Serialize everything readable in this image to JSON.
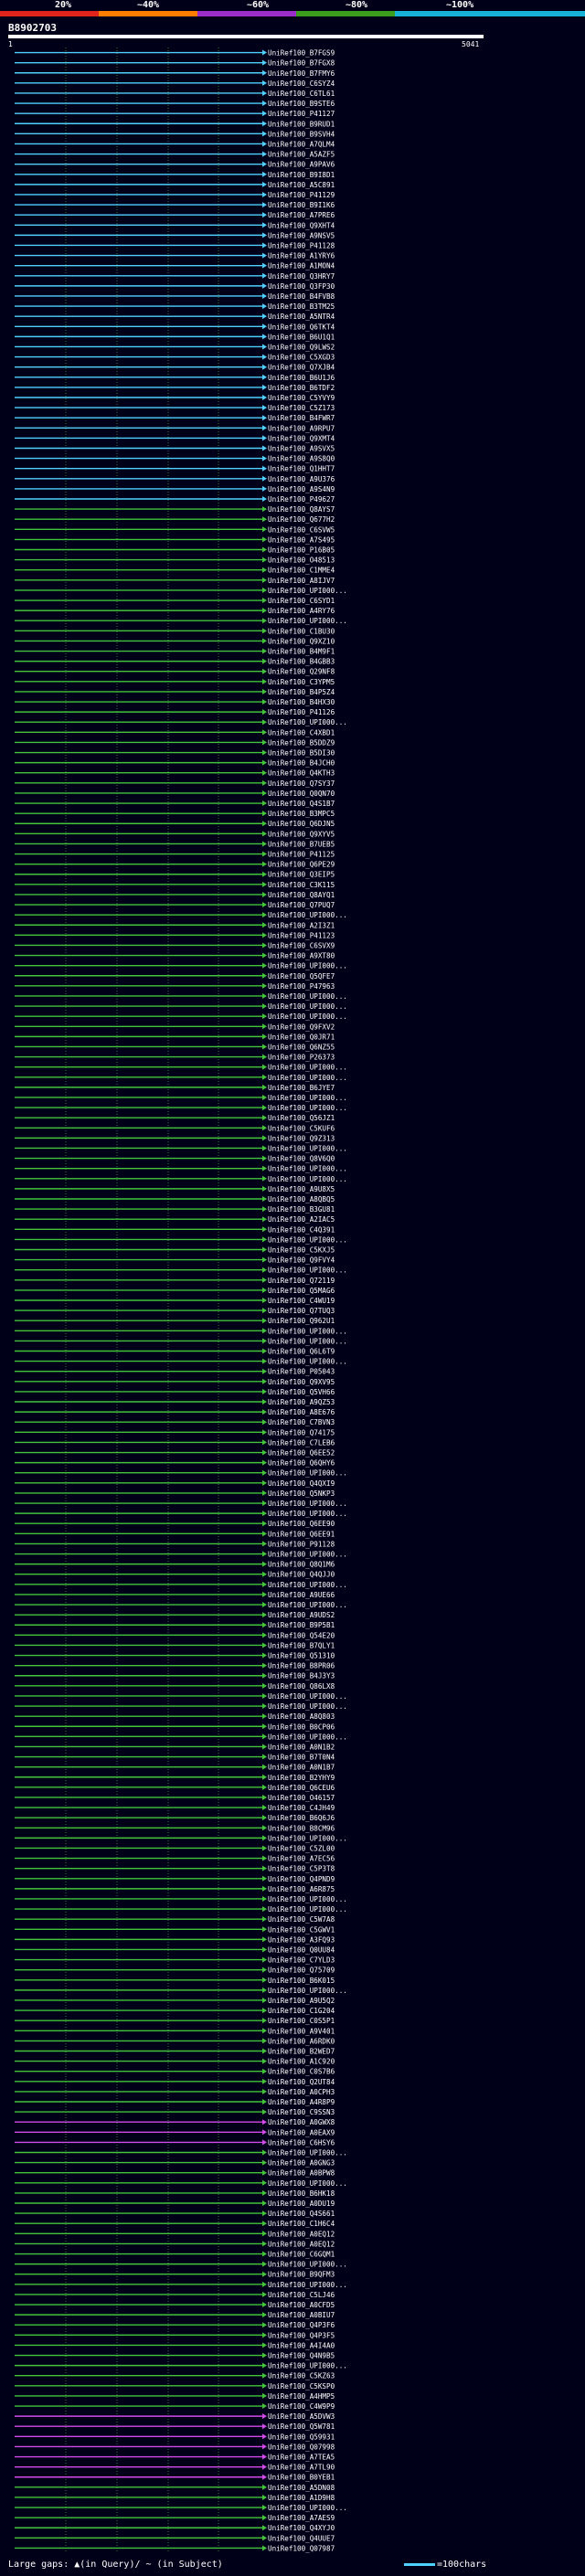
{
  "scale": {
    "labels": [
      "20%",
      "~40%",
      "~60%",
      "~80%",
      "~100%"
    ],
    "colors": [
      "#e0241b",
      "#ff7d00",
      "#9b2dc9",
      "#3c9c1c",
      "#17b2d6"
    ]
  },
  "query": {
    "id": "B8902703",
    "start": "1",
    "end": "5041"
  },
  "legend": {
    "text": "Large gaps: ▲(in Query)/ ~ (in Subject)",
    "scale_text": "=100chars"
  },
  "colors": {
    "cyan": "#4fd0ff",
    "green": "#43c43a",
    "magenta": "#d24ae8",
    "grid": "#3a7d3a"
  },
  "hits": [
    {
      "label": "UniRef100_B7FGS9",
      "color": "cyan"
    },
    {
      "label": "UniRef100_B7FGX8",
      "color": "cyan"
    },
    {
      "label": "UniRef100_B7FMY6",
      "color": "cyan"
    },
    {
      "label": "UniRef100_C6SYZ4",
      "color": "cyan"
    },
    {
      "label": "UniRef100_C6TL61",
      "color": "cyan"
    },
    {
      "label": "UniRef100_B9STE6",
      "color": "cyan"
    },
    {
      "label": "UniRef100_P41127",
      "color": "cyan"
    },
    {
      "label": "UniRef100_B9RUD1",
      "color": "cyan"
    },
    {
      "label": "UniRef100_B9SVH4",
      "color": "cyan"
    },
    {
      "label": "UniRef100_A7QLM4",
      "color": "cyan"
    },
    {
      "label": "UniRef100_A5AZF5",
      "color": "cyan"
    },
    {
      "label": "UniRef100_A9PAV6",
      "color": "cyan"
    },
    {
      "label": "UniRef100_B9I8D1",
      "color": "cyan"
    },
    {
      "label": "UniRef100_A5C891",
      "color": "cyan"
    },
    {
      "label": "UniRef100_P41129",
      "color": "cyan"
    },
    {
      "label": "UniRef100_B9I1K6",
      "color": "cyan"
    },
    {
      "label": "UniRef100_A7PRE6",
      "color": "cyan"
    },
    {
      "label": "UniRef100_Q9XHT4",
      "color": "cyan"
    },
    {
      "label": "UniRef100_A9NSV5",
      "color": "cyan"
    },
    {
      "label": "UniRef100_P41128",
      "color": "cyan"
    },
    {
      "label": "UniRef100_A1YRY6",
      "color": "cyan"
    },
    {
      "label": "UniRef100_A1MON4",
      "color": "cyan"
    },
    {
      "label": "UniRef100_Q3HRY7",
      "color": "cyan"
    },
    {
      "label": "UniRef100_Q3FP30",
      "color": "cyan"
    },
    {
      "label": "UniRef100_B4FVB8",
      "color": "cyan"
    },
    {
      "label": "UniRef100_B3TM25",
      "color": "cyan"
    },
    {
      "label": "UniRef100_A5NTR4",
      "color": "cyan"
    },
    {
      "label": "UniRef100_Q6TKT4",
      "color": "cyan"
    },
    {
      "label": "UniRef100_B6U1Q1",
      "color": "cyan"
    },
    {
      "label": "UniRef100_Q9LWS2",
      "color": "cyan"
    },
    {
      "label": "UniRef100_C5XGD3",
      "color": "cyan"
    },
    {
      "label": "UniRef100_Q7XJB4",
      "color": "cyan"
    },
    {
      "label": "UniRef100_B6U1J6",
      "color": "cyan"
    },
    {
      "label": "UniRef100_B6TDF2",
      "color": "cyan"
    },
    {
      "label": "UniRef100_C5YVY9",
      "color": "cyan"
    },
    {
      "label": "UniRef100_C5Z173",
      "color": "cyan"
    },
    {
      "label": "UniRef100_B4FWR7",
      "color": "cyan"
    },
    {
      "label": "UniRef100_A9RPU7",
      "color": "cyan"
    },
    {
      "label": "UniRef100_Q9XMT4",
      "color": "cyan"
    },
    {
      "label": "UniRef100_A9SVX5",
      "color": "cyan"
    },
    {
      "label": "UniRef100_A9S8Q0",
      "color": "cyan"
    },
    {
      "label": "UniRef100_Q1HHT7",
      "color": "cyan"
    },
    {
      "label": "UniRef100_A9U376",
      "color": "cyan"
    },
    {
      "label": "UniRef100_A9S4N9",
      "color": "cyan"
    },
    {
      "label": "UniRef100_P49627",
      "color": "cyan"
    },
    {
      "label": "UniRef100_Q8AYS7",
      "color": "green"
    },
    {
      "label": "UniRef100_Q677H2",
      "color": "green"
    },
    {
      "label": "UniRef100_C6SVW5",
      "color": "green"
    },
    {
      "label": "UniRef100_A7S495",
      "color": "green"
    },
    {
      "label": "UniRef100_P16B05",
      "color": "green"
    },
    {
      "label": "UniRef100_O48513",
      "color": "green"
    },
    {
      "label": "UniRef100_C1MME4",
      "color": "green"
    },
    {
      "label": "UniRef100_A8IJV7",
      "color": "green"
    },
    {
      "label": "UniRef100_UPI000...",
      "color": "green"
    },
    {
      "label": "UniRef100_C6SYD1",
      "color": "green"
    },
    {
      "label": "UniRef100_A4RY76",
      "color": "green"
    },
    {
      "label": "UniRef100_UPI000...",
      "color": "green"
    },
    {
      "label": "UniRef100_C1BU30",
      "color": "green"
    },
    {
      "label": "UniRef100_Q9XZ10",
      "color": "green"
    },
    {
      "label": "UniRef100_B4M9F1",
      "color": "green"
    },
    {
      "label": "UniRef100_B4GBB3",
      "color": "green"
    },
    {
      "label": "UniRef100_Q29NF8",
      "color": "green"
    },
    {
      "label": "UniRef100_C3YPM5",
      "color": "green"
    },
    {
      "label": "UniRef100_B4P5Z4",
      "color": "green"
    },
    {
      "label": "UniRef100_B4HX30",
      "color": "green"
    },
    {
      "label": "UniRef100_P41126",
      "color": "green"
    },
    {
      "label": "UniRef100_UPI000...",
      "color": "green"
    },
    {
      "label": "UniRef100_C4XBD1",
      "color": "green"
    },
    {
      "label": "UniRef100_B5DDZ9",
      "color": "green"
    },
    {
      "label": "UniRef100_B5DI30",
      "color": "green"
    },
    {
      "label": "UniRef100_B4JCH0",
      "color": "green"
    },
    {
      "label": "UniRef100_Q4KTH3",
      "color": "green"
    },
    {
      "label": "UniRef100_Q7SY37",
      "color": "green"
    },
    {
      "label": "UniRef100_Q0QN70",
      "color": "green"
    },
    {
      "label": "UniRef100_Q4S1B7",
      "color": "green"
    },
    {
      "label": "UniRef100_B3MPC5",
      "color": "green"
    },
    {
      "label": "UniRef100_Q6DJN5",
      "color": "green"
    },
    {
      "label": "UniRef100_Q9XYV5",
      "color": "green"
    },
    {
      "label": "UniRef100_B7UEB5",
      "color": "green"
    },
    {
      "label": "UniRef100_P41125",
      "color": "green"
    },
    {
      "label": "UniRef100_Q6PE29",
      "color": "green"
    },
    {
      "label": "UniRef100_Q3EIP5",
      "color": "green"
    },
    {
      "label": "UniRef100_C3K115",
      "color": "green"
    },
    {
      "label": "UniRef100_Q8AYQ1",
      "color": "green"
    },
    {
      "label": "UniRef100_Q7PUQ7",
      "color": "green"
    },
    {
      "label": "UniRef100_UPI000...",
      "color": "green"
    },
    {
      "label": "UniRef100_A2I3Z1",
      "color": "green"
    },
    {
      "label": "UniRef100_P41123",
      "color": "green"
    },
    {
      "label": "UniRef100_C6SVX9",
      "color": "green"
    },
    {
      "label": "UniRef100_A9XT80",
      "color": "green"
    },
    {
      "label": "UniRef100_UPI000...",
      "color": "green"
    },
    {
      "label": "UniRef100_Q5QFE7",
      "color": "green"
    },
    {
      "label": "UniRef100_P47963",
      "color": "green"
    },
    {
      "label": "UniRef100_UPI000...",
      "color": "green"
    },
    {
      "label": "UniRef100_UPI000...",
      "color": "green"
    },
    {
      "label": "UniRef100_UPI000...",
      "color": "green"
    },
    {
      "label": "UniRef100_Q9FXV2",
      "color": "green"
    },
    {
      "label": "UniRef100_Q0JR71",
      "color": "green"
    },
    {
      "label": "UniRef100_Q6NZ55",
      "color": "green"
    },
    {
      "label": "UniRef100_P26373",
      "color": "green"
    },
    {
      "label": "UniRef100_UPI000...",
      "color": "green"
    },
    {
      "label": "UniRef100_UPI000...",
      "color": "green"
    },
    {
      "label": "UniRef100_B6JYE7",
      "color": "green"
    },
    {
      "label": "UniRef100_UPI000...",
      "color": "green"
    },
    {
      "label": "UniRef100_UPI000...",
      "color": "green"
    },
    {
      "label": "UniRef100_Q56JZ1",
      "color": "green"
    },
    {
      "label": "UniRef100_C5KUF6",
      "color": "green"
    },
    {
      "label": "UniRef100_Q9Z313",
      "color": "green"
    },
    {
      "label": "UniRef100_UPI000...",
      "color": "green"
    },
    {
      "label": "UniRef100_Q8V6Q0",
      "color": "green"
    },
    {
      "label": "UniRef100_UPI000...",
      "color": "green"
    },
    {
      "label": "UniRef100_UPI000...",
      "color": "green"
    },
    {
      "label": "UniRef100_A9U8X5",
      "color": "green"
    },
    {
      "label": "UniRef100_A8QBQ5",
      "color": "green"
    },
    {
      "label": "UniRef100_B3GU81",
      "color": "green"
    },
    {
      "label": "UniRef100_A2IAC5",
      "color": "green"
    },
    {
      "label": "UniRef100_C4Q391",
      "color": "green"
    },
    {
      "label": "UniRef100_UPI000...",
      "color": "green"
    },
    {
      "label": "UniRef100_C5KXJ5",
      "color": "green"
    },
    {
      "label": "UniRef100_Q9FVY4",
      "color": "green"
    },
    {
      "label": "UniRef100_UPI000...",
      "color": "green"
    },
    {
      "label": "UniRef100_Q72119",
      "color": "green"
    },
    {
      "label": "UniRef100_Q5MAG6",
      "color": "green"
    },
    {
      "label": "UniRef100_C4WU19",
      "color": "green"
    },
    {
      "label": "UniRef100_Q7TUQ3",
      "color": "green"
    },
    {
      "label": "UniRef100_Q962U1",
      "color": "green"
    },
    {
      "label": "UniRef100_UPI000...",
      "color": "green"
    },
    {
      "label": "UniRef100_UPI000...",
      "color": "green"
    },
    {
      "label": "UniRef100_Q6L6T9",
      "color": "green"
    },
    {
      "label": "UniRef100_UPI000...",
      "color": "green"
    },
    {
      "label": "UniRef100_P05043",
      "color": "green"
    },
    {
      "label": "UniRef100_Q9XV95",
      "color": "green"
    },
    {
      "label": "UniRef100_Q5VH66",
      "color": "green"
    },
    {
      "label": "UniRef100_A9QZ53",
      "color": "green"
    },
    {
      "label": "UniRef100_A8E676",
      "color": "green"
    },
    {
      "label": "UniRef100_C7BVN3",
      "color": "green"
    },
    {
      "label": "UniRef100_Q74175",
      "color": "green"
    },
    {
      "label": "UniRef100_C7LEB6",
      "color": "green"
    },
    {
      "label": "UniRef100_Q6EE52",
      "color": "green"
    },
    {
      "label": "UniRef100_Q6QHY6",
      "color": "green"
    },
    {
      "label": "UniRef100_UPI000...",
      "color": "green"
    },
    {
      "label": "UniRef100_Q4QXI9",
      "color": "green"
    },
    {
      "label": "UniRef100_Q5NKP3",
      "color": "green"
    },
    {
      "label": "UniRef100_UPI000...",
      "color": "green"
    },
    {
      "label": "UniRef100_UPI000...",
      "color": "green"
    },
    {
      "label": "UniRef100_Q6EE90",
      "color": "green"
    },
    {
      "label": "UniRef100_Q6EE91",
      "color": "green"
    },
    {
      "label": "UniRef100_P91128",
      "color": "green"
    },
    {
      "label": "UniRef100_UPI000...",
      "color": "green"
    },
    {
      "label": "UniRef100_Q8Q1M6",
      "color": "green"
    },
    {
      "label": "UniRef100_Q4QJJ0",
      "color": "green"
    },
    {
      "label": "UniRef100_UPI000...",
      "color": "green"
    },
    {
      "label": "UniRef100_A9UE66",
      "color": "green"
    },
    {
      "label": "UniRef100_UPI000...",
      "color": "green"
    },
    {
      "label": "UniRef100_A9UDS2",
      "color": "green"
    },
    {
      "label": "UniRef100_B9P5B1",
      "color": "green"
    },
    {
      "label": "UniRef100_Q54E20",
      "color": "green"
    },
    {
      "label": "UniRef100_B7QLY1",
      "color": "green"
    },
    {
      "label": "UniRef100_Q51310",
      "color": "green"
    },
    {
      "label": "UniRef100_B8PR06",
      "color": "green"
    },
    {
      "label": "UniRef100_B4J3Y3",
      "color": "green"
    },
    {
      "label": "UniRef100_Q86LX8",
      "color": "green"
    },
    {
      "label": "UniRef100_UPI000...",
      "color": "green"
    },
    {
      "label": "UniRef100_UPI000...",
      "color": "green"
    },
    {
      "label": "UniRef100_A8Q803",
      "color": "green"
    },
    {
      "label": "UniRef100_B0CP06",
      "color": "green"
    },
    {
      "label": "UniRef100_UPI000...",
      "color": "green"
    },
    {
      "label": "UniRef100_A0N1B2",
      "color": "green"
    },
    {
      "label": "UniRef100_B7T0N4",
      "color": "green"
    },
    {
      "label": "UniRef100_A0N1B7",
      "color": "green"
    },
    {
      "label": "UniRef100_B2YHY9",
      "color": "green"
    },
    {
      "label": "UniRef100_Q6CEU6",
      "color": "green"
    },
    {
      "label": "UniRef100_O46157",
      "color": "green"
    },
    {
      "label": "UniRef100_C4JH49",
      "color": "green"
    },
    {
      "label": "UniRef100_B6Q6J6",
      "color": "green"
    },
    {
      "label": "UniRef100_B8CM96",
      "color": "green"
    },
    {
      "label": "UniRef100_UPI000...",
      "color": "green"
    },
    {
      "label": "UniRef100_C5ZL00",
      "color": "green"
    },
    {
      "label": "UniRef100_A7EC56",
      "color": "green"
    },
    {
      "label": "UniRef100_C5P3T8",
      "color": "green"
    },
    {
      "label": "UniRef100_Q4PND9",
      "color": "green"
    },
    {
      "label": "UniRef100_A6R875",
      "color": "green"
    },
    {
      "label": "UniRef100_UPI000...",
      "color": "green"
    },
    {
      "label": "UniRef100_UPI000...",
      "color": "green"
    },
    {
      "label": "UniRef100_C5W7A8",
      "color": "green"
    },
    {
      "label": "UniRef100_C5GWV1",
      "color": "green"
    },
    {
      "label": "UniRef100_A3FQ93",
      "color": "green"
    },
    {
      "label": "UniRef100_Q0UU84",
      "color": "green"
    },
    {
      "label": "UniRef100_C7YLD3",
      "color": "green"
    },
    {
      "label": "UniRef100_Q75709",
      "color": "green"
    },
    {
      "label": "UniRef100_B6K015",
      "color": "green"
    },
    {
      "label": "UniRef100_UPI000...",
      "color": "green"
    },
    {
      "label": "UniRef100_A9U5Q2",
      "color": "green"
    },
    {
      "label": "UniRef100_C1G204",
      "color": "green"
    },
    {
      "label": "UniRef100_C0S5P1",
      "color": "green"
    },
    {
      "label": "UniRef100_A9V401",
      "color": "green"
    },
    {
      "label": "UniRef100_A6RDK0",
      "color": "green"
    },
    {
      "label": "UniRef100_B2WED7",
      "color": "green"
    },
    {
      "label": "UniRef100_A1C920",
      "color": "green"
    },
    {
      "label": "UniRef100_C0S7B6",
      "color": "green"
    },
    {
      "label": "UniRef100_Q2UT84",
      "color": "green"
    },
    {
      "label": "UniRef100_A0CPH3",
      "color": "green"
    },
    {
      "label": "UniRef100_A4R8P9",
      "color": "green"
    },
    {
      "label": "UniRef100_C9SSN3",
      "color": "green"
    },
    {
      "label": "UniRef100_A0GWX8",
      "color": "magenta"
    },
    {
      "label": "UniRef100_A0EAX9",
      "color": "magenta"
    },
    {
      "label": "UniRef100_C6HSY6",
      "color": "magenta"
    },
    {
      "label": "UniRef100_UPI000...",
      "color": "green"
    },
    {
      "label": "UniRef100_A0GNG3",
      "color": "green"
    },
    {
      "label": "UniRef100_A0BPW8",
      "color": "green"
    },
    {
      "label": "UniRef100_UPI000...",
      "color": "green"
    },
    {
      "label": "UniRef100_B6HK18",
      "color": "green"
    },
    {
      "label": "UniRef100_A0DU19",
      "color": "green"
    },
    {
      "label": "UniRef100_Q4S661",
      "color": "green"
    },
    {
      "label": "UniRef100_C1H6C4",
      "color": "green"
    },
    {
      "label": "UniRef100_A0EQ12",
      "color": "green"
    },
    {
      "label": "UniRef100_A0EQ12",
      "color": "green"
    },
    {
      "label": "UniRef100_C6GQM1",
      "color": "green"
    },
    {
      "label": "UniRef100_UPI000...",
      "color": "green"
    },
    {
      "label": "UniRef100_B9QFM3",
      "color": "green"
    },
    {
      "label": "UniRef100_UPI000...",
      "color": "green"
    },
    {
      "label": "UniRef100_C5LJ46",
      "color": "green"
    },
    {
      "label": "UniRef100_A0CFD5",
      "color": "green"
    },
    {
      "label": "UniRef100_A0BIU7",
      "color": "green"
    },
    {
      "label": "UniRef100_Q4P3F6",
      "color": "green"
    },
    {
      "label": "UniRef100_Q4P3F5",
      "color": "green"
    },
    {
      "label": "UniRef100_A4I4A0",
      "color": "green"
    },
    {
      "label": "UniRef100_Q4N9B5",
      "color": "green"
    },
    {
      "label": "UniRef100_UPI000...",
      "color": "green"
    },
    {
      "label": "UniRef100_C5KZ63",
      "color": "green"
    },
    {
      "label": "UniRef100_C5KSP0",
      "color": "green"
    },
    {
      "label": "UniRef100_A4HMP5",
      "color": "green"
    },
    {
      "label": "UniRef100_C4W9P9",
      "color": "green"
    },
    {
      "label": "UniRef100_A5DVW3",
      "color": "magenta"
    },
    {
      "label": "UniRef100_Q5W781",
      "color": "magenta"
    },
    {
      "label": "UniRef100_Q59931",
      "color": "magenta"
    },
    {
      "label": "UniRef100_Q07998",
      "color": "magenta"
    },
    {
      "label": "UniRef100_A7TEA5",
      "color": "magenta"
    },
    {
      "label": "UniRef100_A7TL90",
      "color": "magenta"
    },
    {
      "label": "UniRef100_B0YEB1",
      "color": "magenta"
    },
    {
      "label": "UniRef100_A5DN08",
      "color": "green"
    },
    {
      "label": "UniRef100_A1D9H8",
      "color": "green"
    },
    {
      "label": "UniRef100_UPI000...",
      "color": "green"
    },
    {
      "label": "UniRef100_A7AES9",
      "color": "green"
    },
    {
      "label": "UniRef100_Q4XYJ0",
      "color": "green"
    },
    {
      "label": "UniRef100_Q4UUE7",
      "color": "green"
    },
    {
      "label": "UniRef100_Q07987",
      "color": "green"
    }
  ]
}
